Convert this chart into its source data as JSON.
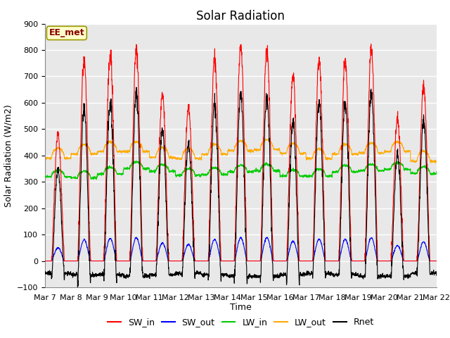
{
  "title": "Solar Radiation",
  "ylabel": "Solar Radiation (W/m2)",
  "xlabel": "Time",
  "ylim": [
    -100,
    900
  ],
  "yticks": [
    -100,
    0,
    100,
    200,
    300,
    400,
    500,
    600,
    700,
    800,
    900
  ],
  "x_tick_labels": [
    "Mar 7",
    "Mar 8",
    "Mar 9",
    "Mar 10",
    "Mar 11",
    "Mar 12",
    "Mar 13",
    "Mar 14",
    "Mar 15",
    "Mar 16",
    "Mar 17",
    "Mar 18",
    "Mar 19",
    "Mar 20",
    "Mar 21",
    "Mar 22"
  ],
  "colors": {
    "SW_in": "#ff0000",
    "SW_out": "#0000ff",
    "LW_in": "#00cc00",
    "LW_out": "#ffaa00",
    "Rnet": "#000000"
  },
  "annotation_text": "EE_met",
  "annotation_bgcolor": "#ffffcc",
  "annotation_edgecolor": "#999900",
  "annotation_textcolor": "#880000",
  "background_color": "#e8e8e8",
  "grid_color": "#ffffff",
  "n_days": 15,
  "pts_per_day": 144,
  "SW_in_peaks": [
    480,
    760,
    780,
    800,
    630,
    580,
    770,
    820,
    805,
    700,
    760,
    760,
    810,
    540,
    670
  ],
  "SW_out_peaks": [
    50,
    80,
    85,
    88,
    68,
    62,
    82,
    88,
    88,
    75,
    82,
    82,
    88,
    58,
    72
  ],
  "LW_in_base": [
    320,
    315,
    330,
    350,
    340,
    325,
    328,
    338,
    342,
    322,
    322,
    338,
    342,
    348,
    332
  ],
  "LW_out_base": [
    390,
    405,
    415,
    415,
    393,
    388,
    405,
    418,
    422,
    408,
    388,
    405,
    410,
    415,
    378
  ],
  "Rnet_night": [
    -45,
    -52,
    -52,
    -58,
    -52,
    -47,
    -52,
    -58,
    -58,
    -52,
    -47,
    -52,
    -58,
    -58,
    -47
  ],
  "title_fontsize": 12,
  "label_fontsize": 9,
  "tick_fontsize": 8,
  "legend_fontsize": 9
}
